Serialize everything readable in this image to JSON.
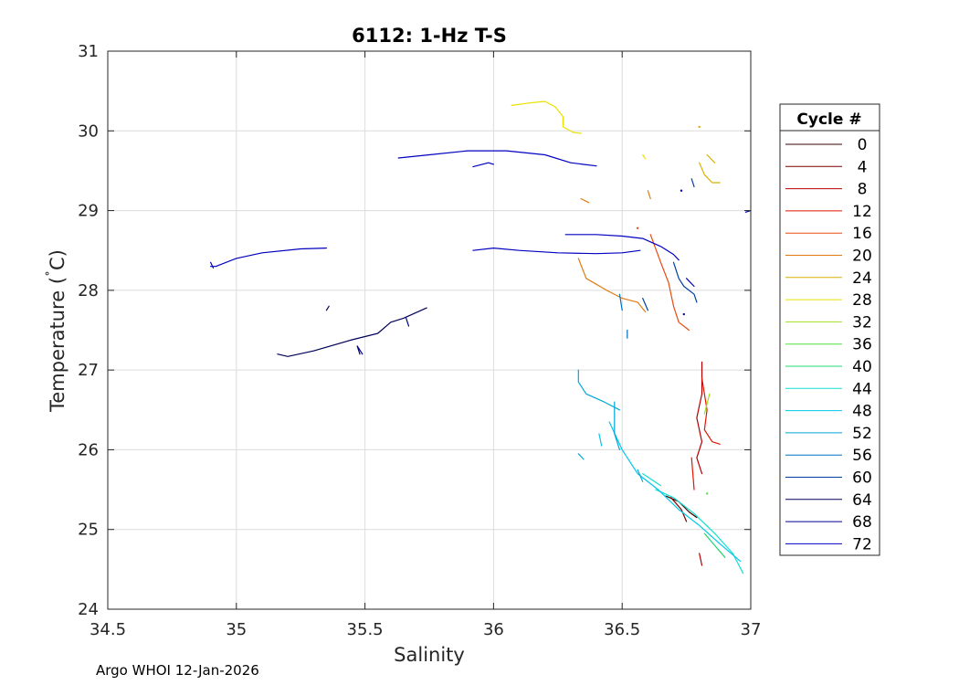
{
  "footer": "Argo WHOI 12-Jan-2026",
  "chart_data": {
    "type": "line",
    "title": "6112: 1-Hz T-S",
    "xlabel": "Salinity",
    "ylabel_main": "Temperature (",
    "ylabel_degree": "˚",
    "ylabel_unit": "C)",
    "xlim": [
      34.5,
      37
    ],
    "ylim": [
      24,
      31
    ],
    "xticks": [
      34.5,
      35,
      35.5,
      36,
      36.5,
      37
    ],
    "xtick_labels": [
      "34.5",
      "35",
      "35.5",
      "36",
      "36.5",
      "37"
    ],
    "yticks": [
      24,
      25,
      26,
      27,
      28,
      29,
      30,
      31
    ],
    "ytick_labels": [
      "24",
      "25",
      "26",
      "27",
      "28",
      "29",
      "30",
      "31"
    ],
    "grid": true,
    "legend_title": "Cycle #",
    "legend_placement": "outside-right",
    "series": [
      {
        "name": "0",
        "color": "#3c0000",
        "segments": [
          [
            [
              36.67,
              25.42
            ],
            [
              36.72,
              25.35
            ],
            [
              36.76,
              25.22
            ],
            [
              36.79,
              25.15
            ]
          ]
        ]
      },
      {
        "name": "4",
        "color": "#7a0000",
        "segments": [
          [
            [
              36.69,
              25.4
            ],
            [
              36.73,
              25.25
            ],
            [
              36.75,
              25.1
            ]
          ]
        ]
      },
      {
        "name": "8",
        "color": "#b40000",
        "segments": [
          [
            [
              36.81,
              27.1
            ],
            [
              36.81,
              26.7
            ],
            [
              36.79,
              26.4
            ],
            [
              36.81,
              26.1
            ],
            [
              36.79,
              25.9
            ],
            [
              36.81,
              25.7
            ]
          ],
          [
            [
              36.8,
              24.7
            ],
            [
              36.81,
              24.55
            ]
          ]
        ]
      },
      {
        "name": "12",
        "color": "#e01800",
        "segments": [
          [
            [
              36.81,
              26.9
            ],
            [
              36.83,
              26.5
            ],
            [
              36.82,
              26.25
            ],
            [
              36.85,
              26.1
            ],
            [
              36.88,
              26.07
            ]
          ],
          [
            [
              36.77,
              25.9
            ],
            [
              36.78,
              25.5
            ]
          ]
        ]
      },
      {
        "name": "16",
        "color": "#e84a10",
        "segments": [
          [
            [
              36.61,
              28.7
            ],
            [
              36.65,
              28.35
            ],
            [
              36.68,
              28.1
            ],
            [
              36.7,
              27.8
            ],
            [
              36.72,
              27.6
            ],
            [
              36.76,
              27.5
            ]
          ],
          [
            [
              36.56,
              28.78
            ]
          ]
        ]
      },
      {
        "name": "20",
        "color": "#e07a10",
        "segments": [
          [
            [
              36.33,
              28.4
            ],
            [
              36.36,
              28.15
            ],
            [
              36.44,
              28.0
            ],
            [
              36.5,
              27.9
            ],
            [
              36.56,
              27.85
            ],
            [
              36.59,
              27.73
            ]
          ],
          [
            [
              36.34,
              29.15
            ],
            [
              36.37,
              29.1
            ]
          ],
          [
            [
              36.6,
              29.25
            ],
            [
              36.61,
              29.15
            ]
          ]
        ]
      },
      {
        "name": "24",
        "color": "#d8b000",
        "segments": [
          [
            [
              36.8,
              29.6
            ],
            [
              36.82,
              29.45
            ],
            [
              36.85,
              29.35
            ],
            [
              36.88,
              29.35
            ]
          ],
          [
            [
              36.83,
              29.7
            ],
            [
              36.86,
              29.6
            ]
          ],
          [
            [
              36.8,
              30.05
            ]
          ]
        ]
      },
      {
        "name": "28",
        "color": "#e8e000",
        "segments": [
          [
            [
              36.07,
              30.32
            ],
            [
              36.14,
              30.35
            ],
            [
              36.2,
              30.37
            ],
            [
              36.24,
              30.3
            ],
            [
              36.27,
              30.18
            ],
            [
              36.27,
              30.05
            ],
            [
              36.31,
              29.98
            ],
            [
              36.34,
              29.97
            ]
          ],
          [
            [
              36.58,
              29.7
            ],
            [
              36.59,
              29.65
            ]
          ]
        ]
      },
      {
        "name": "32",
        "color": "#a0e020",
        "segments": [
          [
            [
              36.84,
              26.7
            ],
            [
              36.82,
              26.45
            ]
          ]
        ]
      },
      {
        "name": "36",
        "color": "#50e040",
        "segments": [
          [
            [
              36.83,
              25.45
            ]
          ]
        ]
      },
      {
        "name": "40",
        "color": "#20d870",
        "segments": [
          [
            [
              36.82,
              24.95
            ],
            [
              36.9,
              24.65
            ]
          ]
        ]
      },
      {
        "name": "44",
        "color": "#10e0d0",
        "segments": [
          [
            [
              36.63,
              25.5
            ],
            [
              36.7,
              25.4
            ],
            [
              36.78,
              25.2
            ],
            [
              36.86,
              24.95
            ],
            [
              36.93,
              24.7
            ],
            [
              36.97,
              24.45
            ]
          ],
          [
            [
              36.58,
              25.7
            ],
            [
              36.65,
              25.55
            ]
          ]
        ]
      },
      {
        "name": "48",
        "color": "#00c8e8",
        "segments": [
          [
            [
              36.45,
              26.35
            ],
            [
              36.5,
              26.0
            ],
            [
              36.56,
              25.7
            ],
            [
              36.64,
              25.5
            ],
            [
              36.72,
              25.25
            ],
            [
              36.8,
              25.05
            ],
            [
              36.88,
              24.82
            ],
            [
              36.96,
              24.6
            ]
          ],
          [
            [
              36.41,
              26.2
            ],
            [
              36.42,
              26.05
            ]
          ]
        ]
      },
      {
        "name": "52",
        "color": "#00a8d8",
        "segments": [
          [
            [
              36.33,
              27.0
            ],
            [
              36.33,
              26.85
            ],
            [
              36.36,
              26.7
            ],
            [
              36.43,
              26.6
            ],
            [
              36.49,
              26.5
            ]
          ],
          [
            [
              36.47,
              26.6
            ],
            [
              36.47,
              26.2
            ],
            [
              36.49,
              26.0
            ]
          ],
          [
            [
              36.33,
              25.95
            ],
            [
              36.35,
              25.88
            ]
          ],
          [
            [
              36.56,
              25.75
            ],
            [
              36.58,
              25.6
            ]
          ]
        ]
      },
      {
        "name": "56",
        "color": "#0070c0",
        "segments": [
          [
            [
              36.49,
              27.95
            ],
            [
              36.5,
              27.75
            ]
          ],
          [
            [
              36.52,
              27.5
            ],
            [
              36.52,
              27.4
            ]
          ]
        ]
      },
      {
        "name": "60",
        "color": "#0040a0",
        "segments": [
          [
            [
              36.7,
              28.35
            ],
            [
              36.72,
              28.15
            ],
            [
              36.74,
              28.05
            ],
            [
              36.78,
              27.95
            ],
            [
              36.79,
              27.85
            ]
          ],
          [
            [
              36.58,
              27.9
            ],
            [
              36.6,
              27.75
            ]
          ],
          [
            [
              36.77,
              29.4
            ],
            [
              36.78,
              29.3
            ]
          ]
        ]
      },
      {
        "name": "64",
        "color": "#000058",
        "segments": [
          [
            [
              35.16,
              27.2
            ],
            [
              35.2,
              27.17
            ],
            [
              35.3,
              27.24
            ],
            [
              35.45,
              27.38
            ],
            [
              35.55,
              27.46
            ],
            [
              35.6,
              27.6
            ],
            [
              35.65,
              27.65
            ],
            [
              35.74,
              27.78
            ]
          ],
          [
            [
              35.47,
              27.3
            ],
            [
              35.48,
              27.2
            ]
          ],
          [
            [
              35.35,
              27.75
            ],
            [
              35.36,
              27.8
            ]
          ]
        ]
      },
      {
        "name": "68",
        "color": "#000090",
        "segments": [
          [
            [
              35.47,
              27.3
            ],
            [
              35.49,
              27.2
            ]
          ],
          [
            [
              35.66,
              27.65
            ],
            [
              35.67,
              27.55
            ]
          ],
          [
            [
              36.74,
              27.7
            ]
          ]
        ]
      },
      {
        "name": "72",
        "color": "#0000c0",
        "segments": [
          [
            [
              35.63,
              29.66
            ],
            [
              35.75,
              29.7
            ],
            [
              35.9,
              29.75
            ],
            [
              36.05,
              29.75
            ],
            [
              36.2,
              29.7
            ],
            [
              36.3,
              29.6
            ],
            [
              36.4,
              29.56
            ]
          ],
          [
            [
              35.92,
              29.55
            ],
            [
              35.98,
              29.6
            ],
            [
              36.0,
              29.58
            ]
          ],
          [
            [
              34.9,
              28.3
            ],
            [
              34.92,
              28.3
            ],
            [
              35.0,
              28.4
            ],
            [
              35.1,
              28.47
            ],
            [
              35.25,
              28.52
            ],
            [
              35.35,
              28.53
            ]
          ],
          [
            [
              34.9,
              28.35
            ],
            [
              34.91,
              28.28
            ]
          ],
          [
            [
              35.92,
              28.5
            ],
            [
              36.0,
              28.53
            ],
            [
              36.1,
              28.5
            ],
            [
              36.25,
              28.47
            ],
            [
              36.4,
              28.46
            ],
            [
              36.5,
              28.47
            ],
            [
              36.57,
              28.5
            ]
          ],
          [
            [
              36.28,
              28.7
            ],
            [
              36.4,
              28.7
            ],
            [
              36.5,
              28.68
            ],
            [
              36.58,
              28.65
            ],
            [
              36.65,
              28.55
            ],
            [
              36.7,
              28.45
            ],
            [
              36.72,
              28.38
            ]
          ],
          [
            [
              36.75,
              28.15
            ],
            [
              36.78,
              28.05
            ]
          ],
          [
            [
              36.98,
              28.98
            ],
            [
              37.0,
              29.0
            ]
          ],
          [
            [
              36.73,
              29.25
            ]
          ]
        ]
      }
    ]
  }
}
